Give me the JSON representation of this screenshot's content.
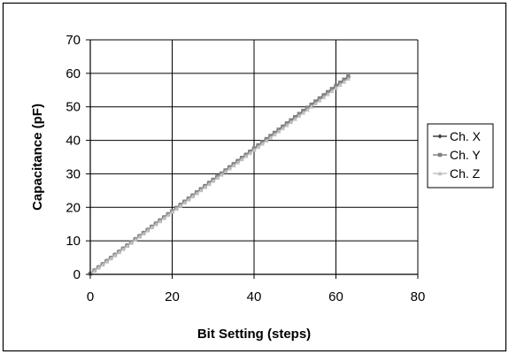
{
  "chart_data": {
    "type": "line",
    "title": "",
    "xlabel": "Bit Setting (steps)",
    "ylabel": "Capacitance (pF)",
    "xlim": [
      0,
      80
    ],
    "ylim": [
      0,
      70
    ],
    "x_ticks": [
      0,
      20,
      40,
      60,
      80
    ],
    "y_ticks": [
      0,
      10,
      20,
      30,
      40,
      50,
      60,
      70
    ],
    "grid": {
      "vertical": true,
      "horizontal": true
    },
    "legend_position": "right",
    "series": [
      {
        "name": "Ch. X",
        "color": "#404040",
        "marker": "diamond",
        "x_start": 0,
        "x_end": 63,
        "slope": 0.93,
        "intercept": 0.3
      },
      {
        "name": "Ch. Y",
        "color": "#808080",
        "marker": "square",
        "x_start": 0,
        "x_end": 63,
        "slope": 0.935,
        "intercept": 0.2
      },
      {
        "name": "Ch. Z",
        "color": "#c0c0c0",
        "marker": "triangle",
        "x_start": 0,
        "x_end": 63,
        "slope": 0.925,
        "intercept": 0.1
      }
    ]
  }
}
